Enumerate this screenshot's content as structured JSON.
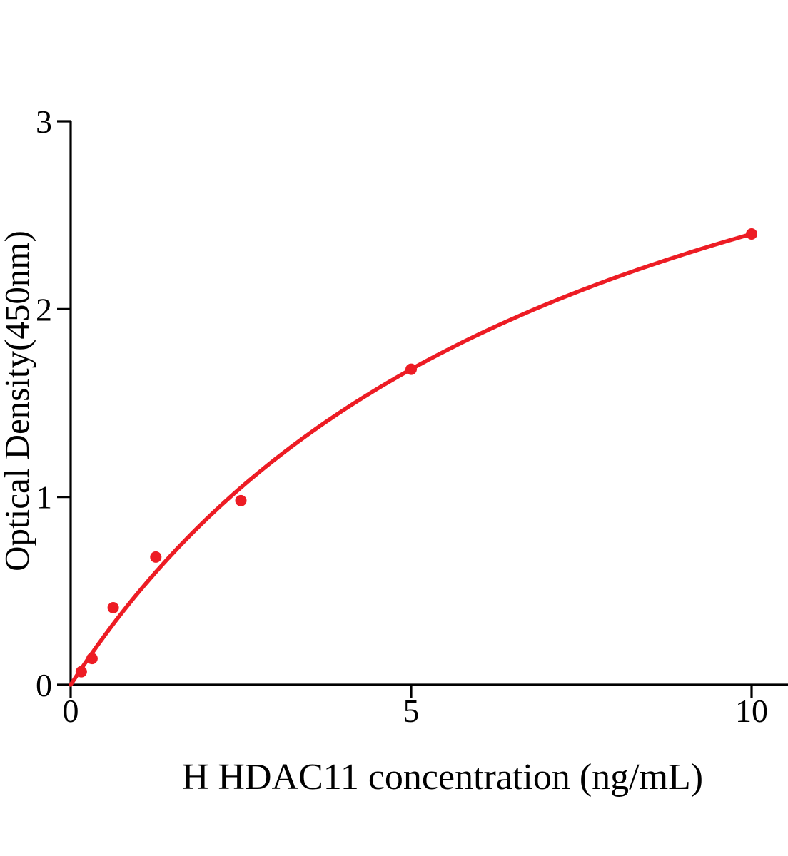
{
  "chart_data": {
    "type": "scatter",
    "title": "",
    "xlabel": "H HDAC11 concentration (ng/mL)",
    "ylabel": "Optical Density(450nm)",
    "x": [
      0.156,
      0.313,
      0.625,
      1.25,
      2.5,
      5,
      10
    ],
    "y": [
      0.07,
      0.14,
      0.41,
      0.68,
      0.98,
      1.68,
      2.4
    ],
    "x_ticks": [
      0,
      5,
      10
    ],
    "y_ticks": [
      0,
      1,
      2,
      3
    ],
    "xlim": [
      0,
      10.5
    ],
    "ylim": [
      0,
      3
    ],
    "grid": false,
    "legend": "none",
    "marker_color": "#ed1c24",
    "curve_color": "#ed1c24",
    "axis_color": "#000000",
    "trend_curve": {
      "model": "one-site binding fit: y = Bmax*x/(Kd+x)",
      "bmax": 4.2,
      "kd": 7.5,
      "x_range": [
        0,
        10
      ]
    }
  }
}
